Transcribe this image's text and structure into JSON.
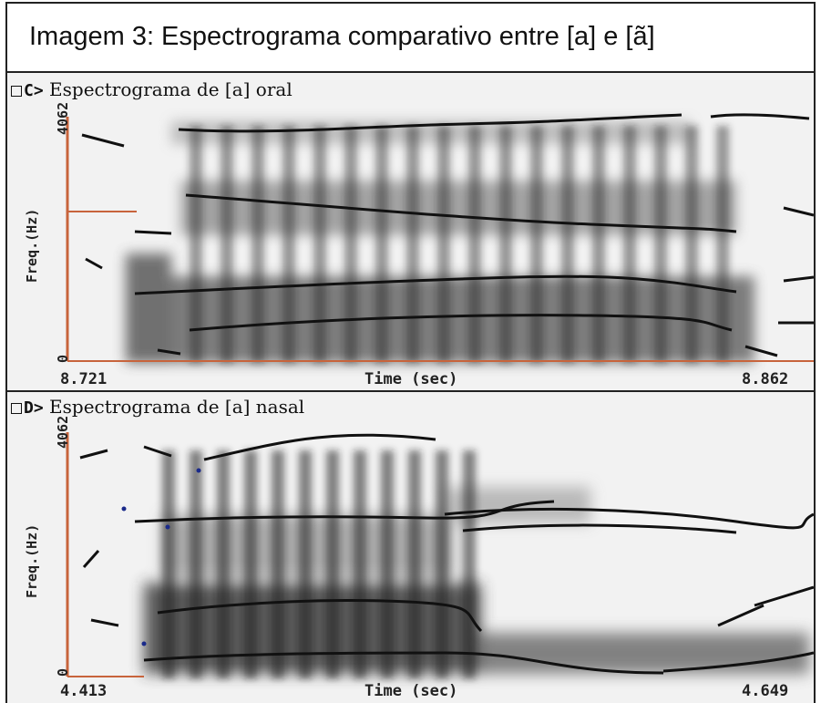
{
  "caption": "Imagem 3: Espectrograma comparativo entre [a] e [ã]",
  "panels": [
    {
      "id": "C>",
      "title": "Espectrograma de [a] oral",
      "y_axis_label": "Freq.(Hz)",
      "y_max": "4062",
      "y_min": "0",
      "x_start": "8.721",
      "x_end": "8.862",
      "x_label": "Time (sec)"
    },
    {
      "id": "D>",
      "title": "Espectrograma de [a] nasal",
      "y_axis_label": "Freq.(Hz)",
      "y_max": "4062",
      "y_min": "0",
      "x_start": "4.413",
      "x_end": "4.649",
      "x_label": "Time (sec)"
    }
  ],
  "colors": {
    "axis": "#c8643c",
    "trace": "#111111",
    "background": "#f2f2f2"
  }
}
